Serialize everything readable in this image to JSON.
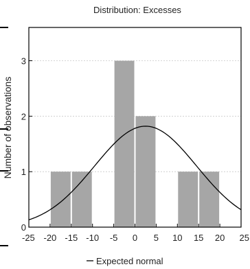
{
  "chart_data": {
    "type": "bar",
    "title": "Distribution: Excesses",
    "xlabel": "",
    "ylabel": "Number of observations",
    "xlim": [
      -25,
      25
    ],
    "ylim": [
      0,
      3.6
    ],
    "x_ticks": [
      "-25",
      "-20",
      "-15",
      "-10",
      "-5",
      "0",
      "5",
      "10",
      "15",
      "20",
      "25"
    ],
    "y_ticks": [
      "0",
      "1",
      "2",
      "3"
    ],
    "bins": [
      {
        "start": -20,
        "end": -15,
        "count": 1
      },
      {
        "start": -15,
        "end": -10,
        "count": 1
      },
      {
        "start": -5,
        "end": 0,
        "count": 3
      },
      {
        "start": 0,
        "end": 5,
        "count": 2
      },
      {
        "start": 10,
        "end": 15,
        "count": 1
      },
      {
        "start": 15,
        "end": 20,
        "count": 1
      }
    ],
    "curve": {
      "name": "Expected normal",
      "mean": 2.5,
      "peak": 1.82,
      "sd": 12.0,
      "color": "#000000"
    },
    "bar_color": "#a6a6a6",
    "grid": true,
    "legend": "bottom"
  }
}
